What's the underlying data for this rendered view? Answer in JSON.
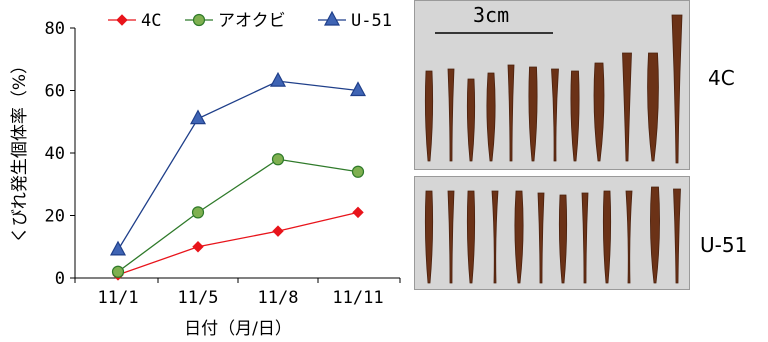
{
  "chart_data": {
    "type": "line",
    "categories": [
      "11/1",
      "11/5",
      "11/8",
      "11/11"
    ],
    "series": [
      {
        "name": "4C",
        "values": [
          1,
          10,
          15,
          21
        ],
        "color": "#e8141b",
        "marker": "diamond"
      },
      {
        "name": "アオクビ",
        "values": [
          2,
          21,
          38,
          34
        ],
        "color": "#2f7a2a",
        "marker": "circle",
        "marker_fill": "#7fb050"
      },
      {
        "name": "U-51",
        "values": [
          9,
          51,
          63,
          60
        ],
        "color": "#1f3f8a",
        "marker": "triangle",
        "marker_fill": "#3f64b4"
      }
    ],
    "xlabel": "日付（月/日）",
    "ylabel": "くびれ発生個体率（%）",
    "ylim": [
      0,
      80
    ],
    "yticks": [
      0,
      20,
      40,
      60,
      80
    ],
    "grid": false,
    "legend_position": "top"
  },
  "photos": {
    "top": {
      "scale_label": "3cm",
      "label": "4C"
    },
    "bottom": {
      "label": "U-51"
    }
  }
}
